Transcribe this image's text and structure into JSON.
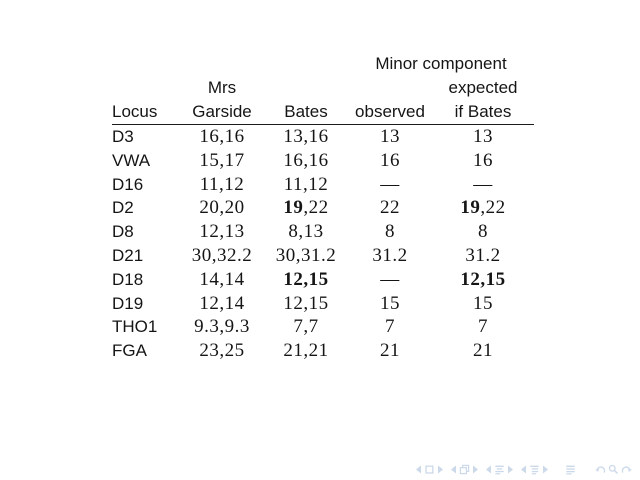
{
  "slide": {
    "background": "#ffffff",
    "text_color": "#151515",
    "rule_color": "#1c1c1c"
  },
  "table": {
    "group_header": "Minor component",
    "subheader": {
      "mrs": "Mrs",
      "expected": "expected"
    },
    "columns": [
      "Locus",
      "Garside",
      "Bates",
      "observed",
      "if Bates"
    ],
    "bold_marker": "**",
    "rows": [
      [
        "D3",
        "16,16",
        "13,16",
        "13",
        "13"
      ],
      [
        "VWA",
        "15,17",
        "16,16",
        "16",
        "16"
      ],
      [
        "D16",
        "11,12",
        "11,12",
        "—",
        "—"
      ],
      [
        "D2",
        "20,20",
        "**19**,22",
        "22",
        "**19**,22"
      ],
      [
        "D8",
        "12,13",
        "8,13",
        "8",
        "8"
      ],
      [
        "D21",
        "30,32.2",
        "30,31.2",
        "31.2",
        "31.2"
      ],
      [
        "D18",
        "14,14",
        "**12,15**",
        "—",
        "**12,15**"
      ],
      [
        "D19",
        "12,14",
        "12,15",
        "15",
        "15"
      ],
      [
        "THO1",
        "9.3,9.3",
        "7,7",
        "7",
        "7"
      ],
      [
        "FGA",
        "23,25",
        "21,21",
        "21",
        "21"
      ]
    ]
  },
  "nav": {
    "color": "#ccd9ea",
    "icons": [
      "prev-slide-icon",
      "slide-box-icon",
      "next-slide-icon",
      "prev-frame-icon",
      "frame-stack-icon",
      "next-frame-icon",
      "prev-section-icon",
      "section-list-icon",
      "next-section-icon",
      "prev-subsection-icon",
      "subsection-list-icon",
      "next-subsection-icon",
      "appendix-doc-icon",
      "back-arrow-icon",
      "search-magnifier-icon",
      "forward-arrow-icon"
    ]
  }
}
